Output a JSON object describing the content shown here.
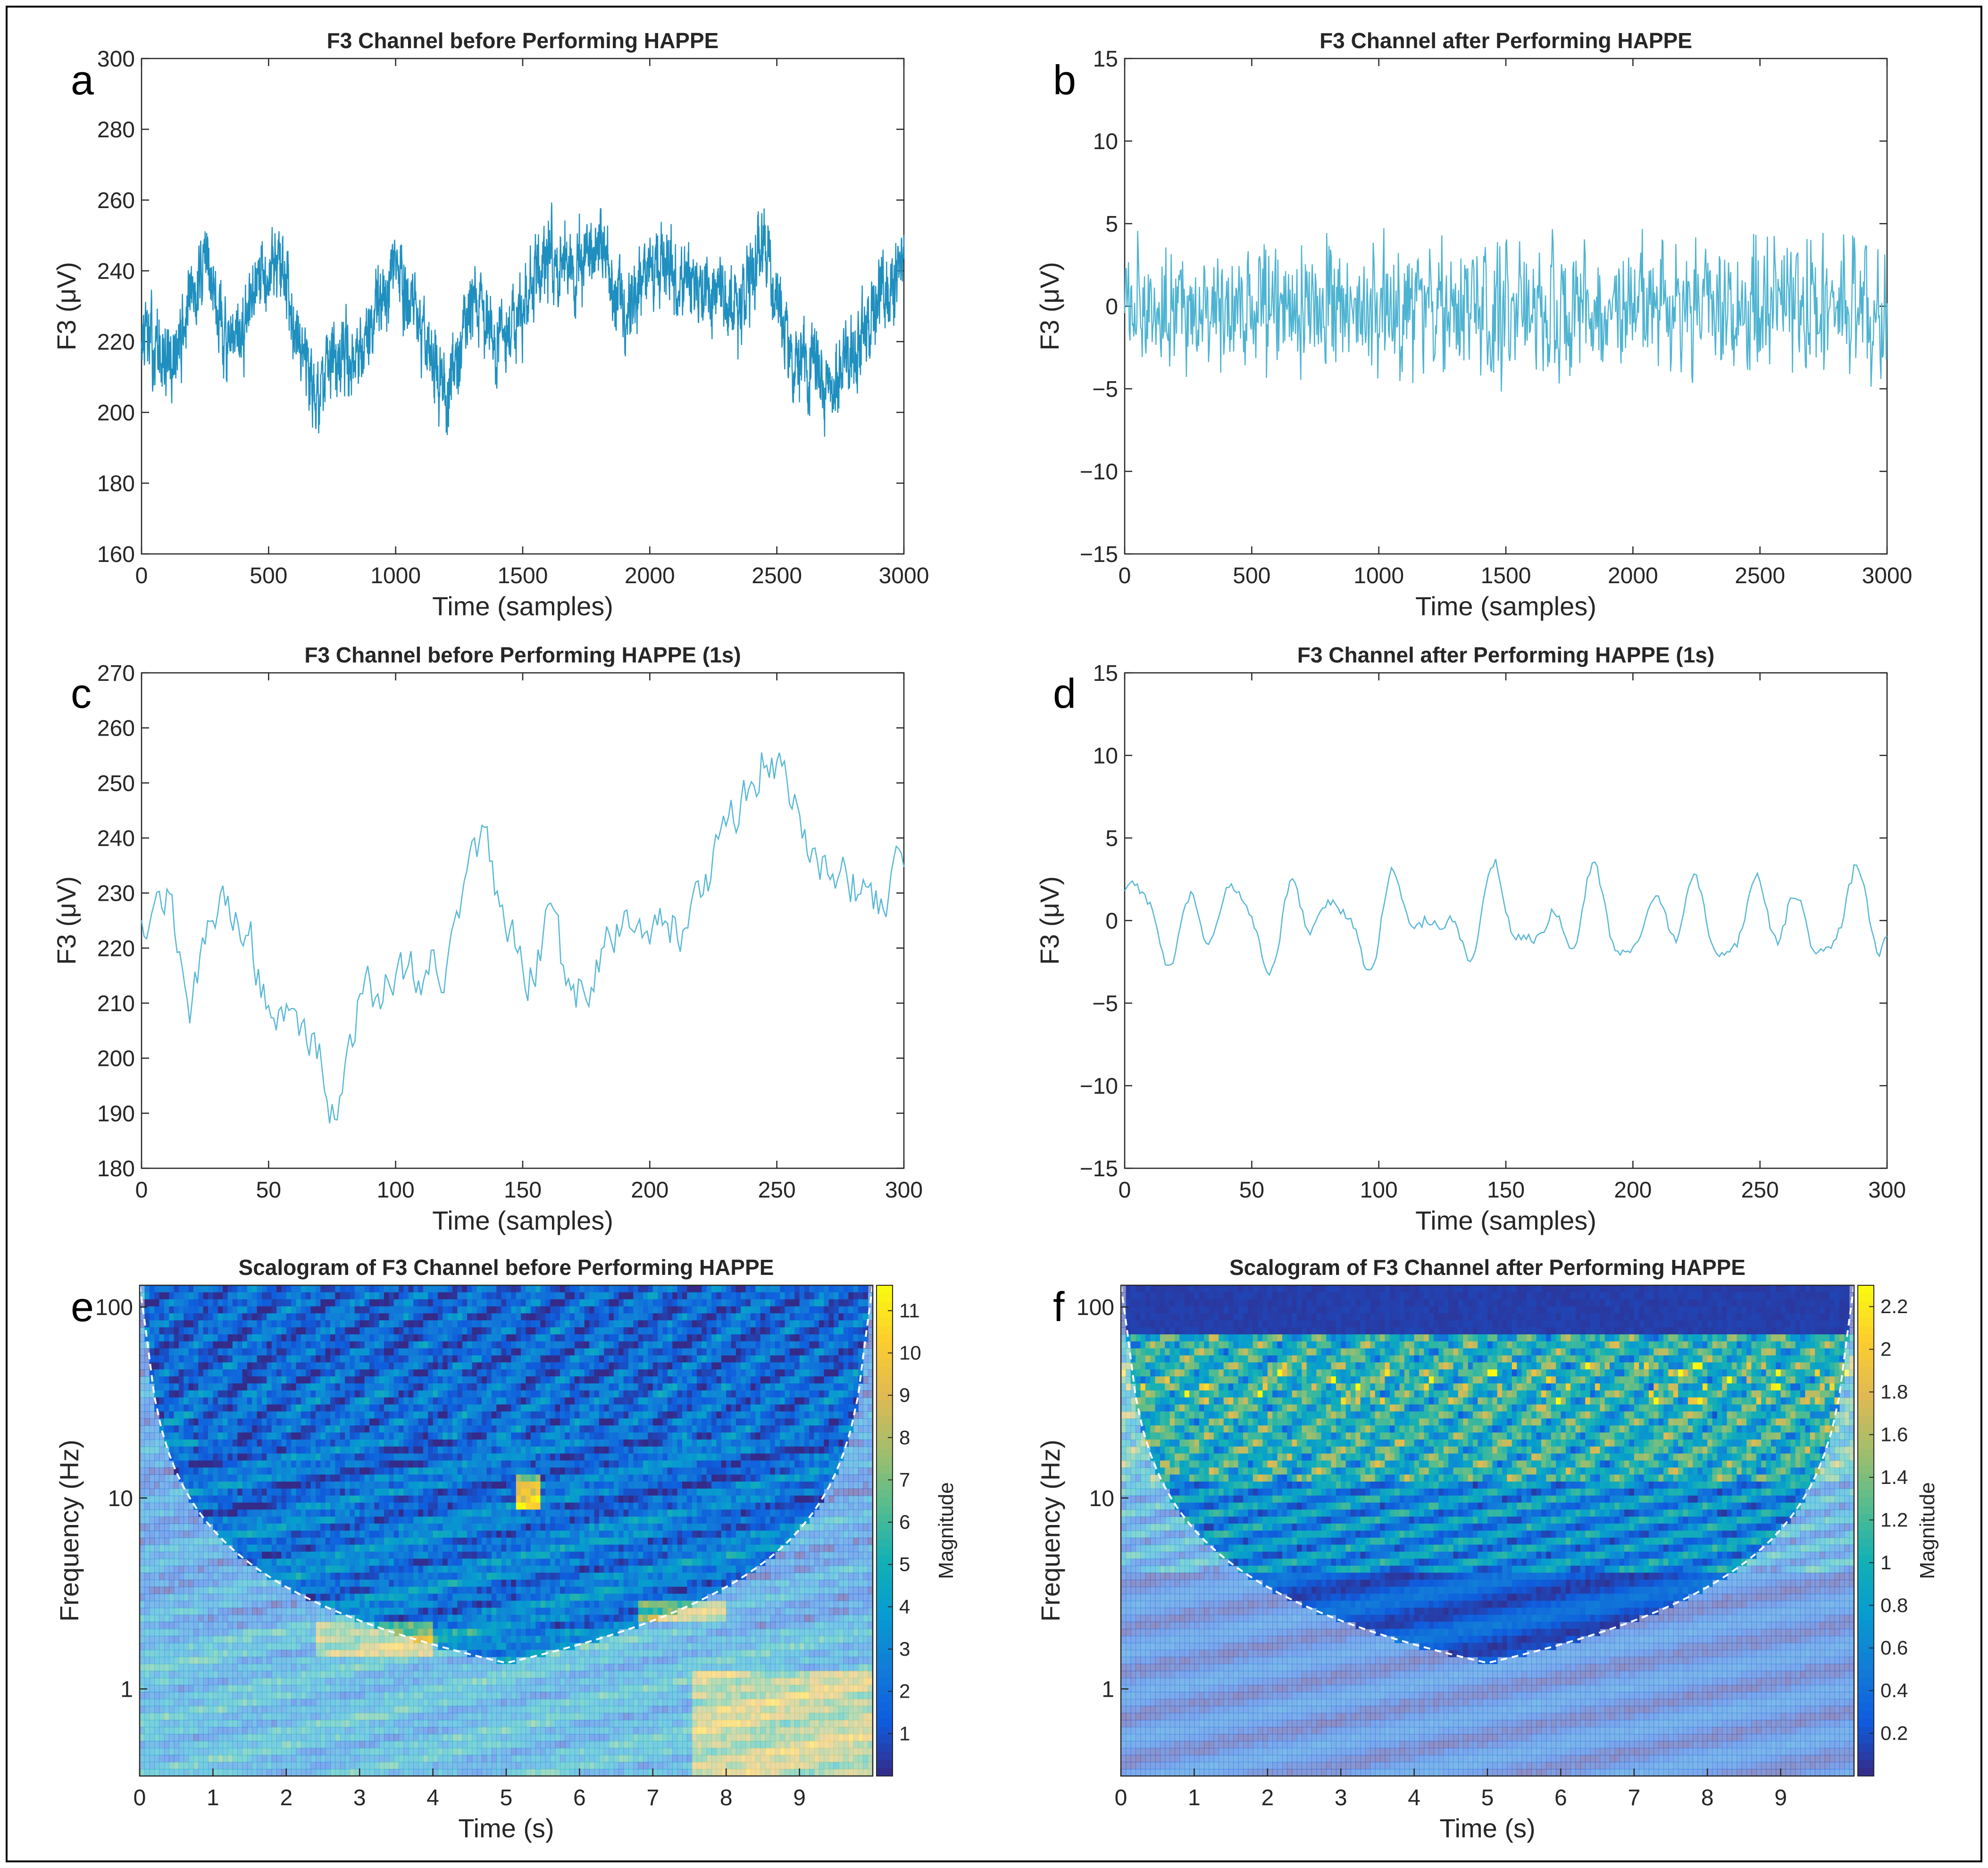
{
  "figure": {
    "panels": [
      {
        "letter": "a"
      },
      {
        "letter": "b"
      },
      {
        "letter": "c"
      },
      {
        "letter": "d"
      },
      {
        "letter": "e"
      },
      {
        "letter": "f"
      }
    ]
  },
  "chart_data": [
    {
      "id": "a",
      "type": "line",
      "title": "F3 Channel before Performing HAPPE",
      "xlabel": "Time (samples)",
      "ylabel": "F3 (μV)",
      "xlim": [
        0,
        3000
      ],
      "ylim": [
        160,
        300
      ],
      "xticks": [
        0,
        500,
        1000,
        1500,
        2000,
        2500,
        3000
      ],
      "yticks": [
        160,
        180,
        200,
        220,
        240,
        260,
        280,
        300
      ],
      "color": "#1f8fbf",
      "series": [
        {
          "name": "F3",
          "n": 3000,
          "waypoints": [
            [
              0,
              222
            ],
            [
              120,
              212
            ],
            [
              250,
              245
            ],
            [
              350,
              215
            ],
            [
              520,
              245
            ],
            [
              600,
              230
            ],
            [
              680,
              205
            ],
            [
              800,
              215
            ],
            [
              900,
              222
            ],
            [
              1000,
              240
            ],
            [
              1100,
              225
            ],
            [
              1200,
              205
            ],
            [
              1300,
              230
            ],
            [
              1400,
              220
            ],
            [
              1500,
              230
            ],
            [
              1600,
              245
            ],
            [
              1700,
              240
            ],
            [
              1800,
              248
            ],
            [
              1900,
              228
            ],
            [
              2000,
              242
            ],
            [
              2100,
              238
            ],
            [
              2200,
              235
            ],
            [
              2350,
              228
            ],
            [
              2450,
              250
            ],
            [
              2550,
              215
            ],
            [
              2650,
              212
            ],
            [
              2750,
              208
            ],
            [
              2850,
              222
            ],
            [
              3000,
              245
            ]
          ]
        }
      ]
    },
    {
      "id": "b",
      "type": "line",
      "title": "F3 Channel after Performing HAPPE",
      "xlabel": "Time (samples)",
      "ylabel": "F3 (μV)",
      "xlim": [
        0,
        3000
      ],
      "ylim": [
        -15,
        15
      ],
      "xticks": [
        0,
        500,
        1000,
        1500,
        2000,
        2500,
        3000
      ],
      "yticks": [
        -15,
        -10,
        -5,
        0,
        5,
        10,
        15
      ],
      "color": "#4db3d1",
      "series": [
        {
          "name": "F3",
          "n": 3000,
          "waypoints": [
            [
              0,
              0
            ],
            [
              3000,
              0
            ]
          ]
        }
      ]
    },
    {
      "id": "c",
      "type": "line",
      "title": "F3 Channel before Performing HAPPE (1s)",
      "xlabel": "Time (samples)",
      "ylabel": "F3 (μV)",
      "xlim": [
        0,
        300
      ],
      "ylim": [
        180,
        270
      ],
      "xticks": [
        0,
        50,
        100,
        150,
        200,
        250,
        300
      ],
      "yticks": [
        180,
        190,
        200,
        210,
        220,
        230,
        240,
        250,
        260,
        270
      ],
      "color": "#5ab8d6",
      "series": [
        {
          "name": "F3",
          "n": 300,
          "waypoints": [
            [
              0,
              226
            ],
            [
              10,
              230
            ],
            [
              20,
              210
            ],
            [
              30,
              228
            ],
            [
              40,
              226
            ],
            [
              50,
              210
            ],
            [
              60,
              205
            ],
            [
              70,
              203
            ],
            [
              76,
              188
            ],
            [
              85,
              210
            ],
            [
              100,
              215
            ],
            [
              120,
              218
            ],
            [
              135,
              240
            ],
            [
              145,
              220
            ],
            [
              155,
              215
            ],
            [
              160,
              225
            ],
            [
              170,
              210
            ],
            [
              185,
              222
            ],
            [
              200,
              225
            ],
            [
              215,
              225
            ],
            [
              230,
              240
            ],
            [
              245,
              255
            ],
            [
              255,
              248
            ],
            [
              265,
              238
            ],
            [
              280,
              232
            ],
            [
              290,
              228
            ],
            [
              300,
              238
            ]
          ]
        }
      ]
    },
    {
      "id": "d",
      "type": "line",
      "title": "F3 Channel after Performing HAPPE (1s)",
      "xlabel": "Time (samples)",
      "ylabel": "F3 (μV)",
      "xlim": [
        0,
        300
      ],
      "ylim": [
        -15,
        15
      ],
      "xticks": [
        0,
        50,
        100,
        150,
        200,
        250,
        300
      ],
      "yticks": [
        -15,
        -10,
        -5,
        0,
        5,
        10,
        15
      ],
      "color": "#5ab8d6",
      "series": [
        {
          "name": "F3",
          "n": 300,
          "waypoints": [
            [
              0,
              0
            ],
            [
              300,
              0
            ]
          ]
        }
      ]
    },
    {
      "id": "e",
      "type": "heatmap",
      "title": "Scalogram of F3 Channel before Performing HAPPE",
      "xlabel": "Time (s)",
      "ylabel": "Frequency (Hz)",
      "xlim": [
        0,
        10
      ],
      "ylim": [
        0.35,
        130
      ],
      "yscale": "log",
      "xticks": [
        0,
        1,
        2,
        3,
        4,
        5,
        6,
        7,
        8,
        9
      ],
      "yticks": [
        1,
        10,
        100
      ],
      "colorbar": {
        "label": "Magnitude",
        "min": 0,
        "max": 11.6,
        "ticks": [
          1,
          2,
          3,
          4,
          5,
          6,
          7,
          8,
          9,
          10,
          11
        ]
      }
    },
    {
      "id": "f",
      "type": "heatmap",
      "title": "Scalogram of F3 Channel after Performing HAPPE",
      "xlabel": "Time (s)",
      "ylabel": "Frequency (Hz)",
      "xlim": [
        0,
        10
      ],
      "ylim": [
        0.35,
        130
      ],
      "yscale": "log",
      "xticks": [
        0,
        1,
        2,
        3,
        4,
        5,
        6,
        7,
        8,
        9
      ],
      "yticks": [
        1,
        10,
        100
      ],
      "colorbar": {
        "label": "Magnitude",
        "min": 0,
        "max": 2.3,
        "ticks": [
          0.2,
          0.4,
          0.6,
          0.8,
          1,
          1.2,
          1.4,
          1.6,
          1.8,
          2,
          2.2
        ]
      }
    }
  ]
}
